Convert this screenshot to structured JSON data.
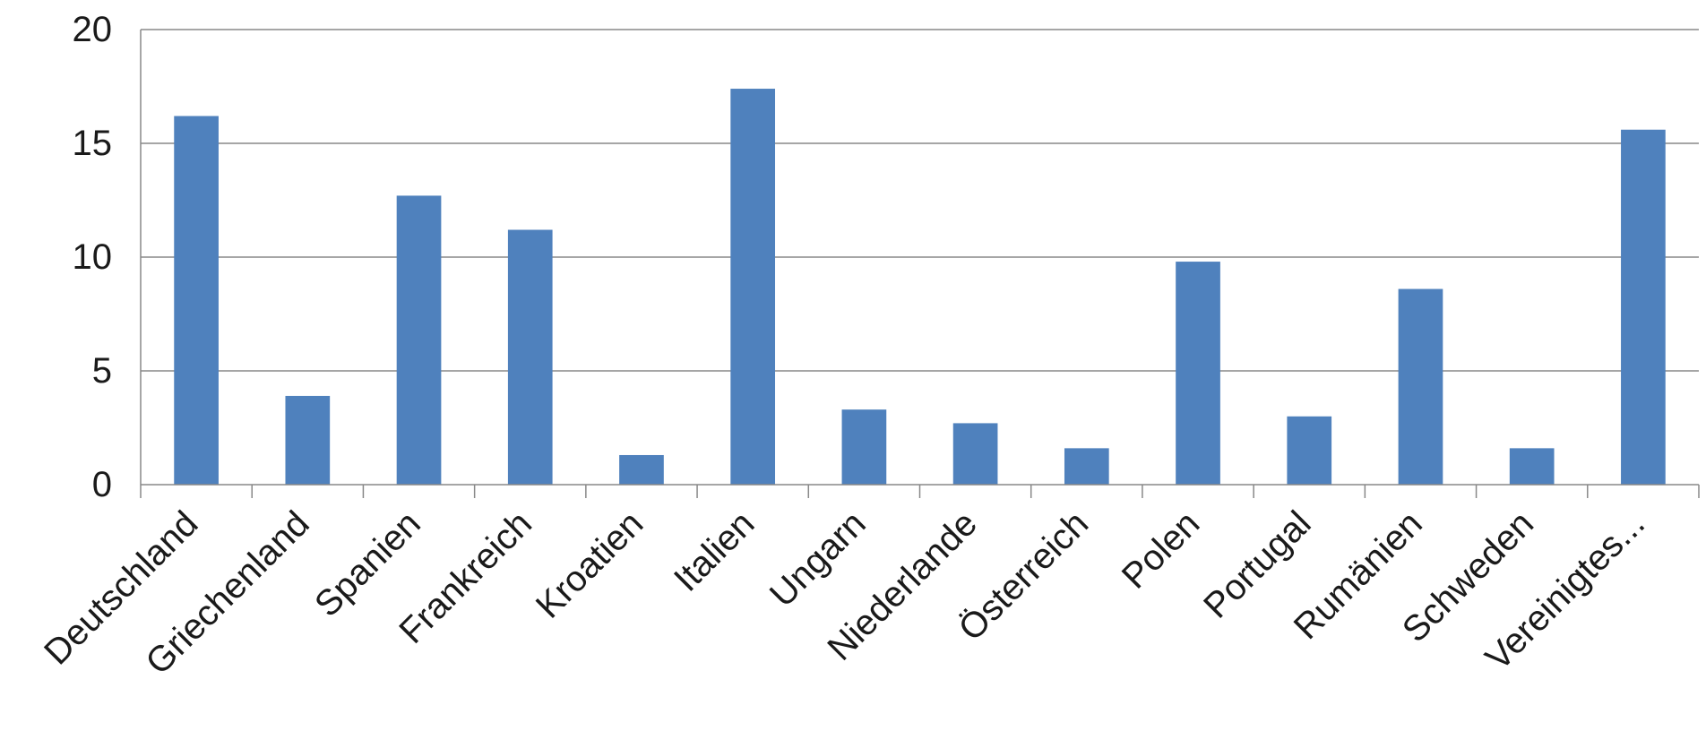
{
  "chart_data": {
    "type": "bar",
    "categories": [
      "Deutschland",
      "Griechenland",
      "Spanien",
      "Frankreich",
      "Kroatien",
      "Italien",
      "Ungarn",
      "Niederlande",
      "Österreich",
      "Polen",
      "Portugal",
      "Rumänien",
      "Schweden",
      "Vereinigtes..."
    ],
    "values": [
      16.2,
      3.9,
      12.7,
      11.2,
      1.3,
      17.4,
      3.3,
      2.7,
      1.6,
      9.8,
      3.0,
      8.6,
      1.6,
      15.6
    ],
    "title": "",
    "xlabel": "",
    "ylabel": "",
    "ylim": [
      0,
      20
    ],
    "yticks": [
      "0",
      "5",
      "10",
      "15",
      "20"
    ],
    "grid": true,
    "legend": "none",
    "colors": {
      "bar": "#4f81bd",
      "grid": "#888888",
      "axis": "#888888"
    }
  }
}
